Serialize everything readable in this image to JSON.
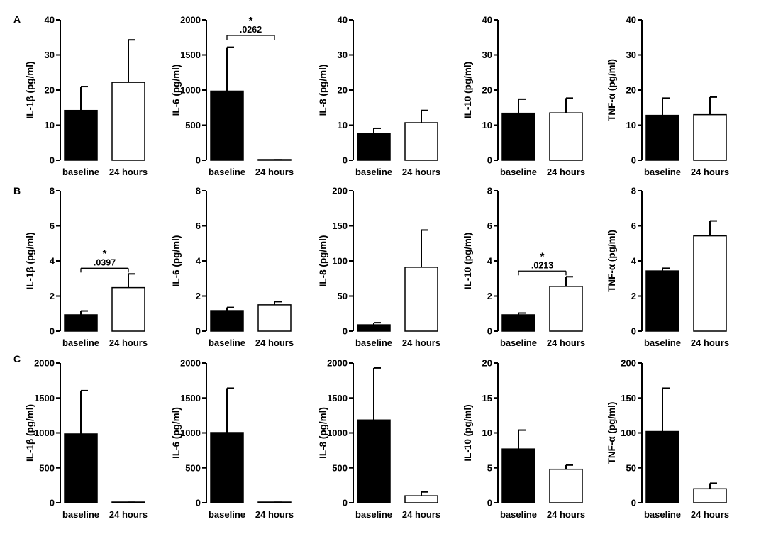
{
  "chart_data": [
    {
      "row": "A",
      "type": "bar",
      "ylabel": "IL-1β  (pg/ml)",
      "ylim": [
        0,
        40
      ],
      "yticks": [
        0,
        10,
        20,
        30,
        40
      ],
      "categories": [
        "baseline",
        "24 hours"
      ],
      "values": [
        14.2,
        22.2
      ],
      "errors": [
        6.8,
        12.1
      ],
      "fills": [
        "#000000",
        "#ffffff"
      ]
    },
    {
      "row": "A",
      "type": "bar",
      "ylabel": "IL-6  (pg/ml)",
      "ylim": [
        0,
        2000
      ],
      "yticks": [
        0,
        500,
        1000,
        1500,
        2000
      ],
      "categories": [
        "baseline",
        "24 hours"
      ],
      "values": [
        985,
        5
      ],
      "errors": [
        625,
        2
      ],
      "fills": [
        "#000000",
        "#ffffff"
      ],
      "significance": {
        "star": "*",
        "p": ".0262"
      }
    },
    {
      "row": "A",
      "type": "bar",
      "ylabel": "IL-8  (pg/ml)",
      "ylim": [
        0,
        40
      ],
      "yticks": [
        0,
        10,
        20,
        30,
        40
      ],
      "categories": [
        "baseline",
        "24 hours"
      ],
      "values": [
        7.6,
        10.7
      ],
      "errors": [
        1.5,
        3.5
      ],
      "fills": [
        "#000000",
        "#ffffff"
      ]
    },
    {
      "row": "A",
      "type": "bar",
      "ylabel": "IL-10  (pg/ml)",
      "ylim": [
        0,
        40
      ],
      "yticks": [
        0,
        10,
        20,
        30,
        40
      ],
      "categories": [
        "baseline",
        "24 hours"
      ],
      "values": [
        13.4,
        13.5
      ],
      "errors": [
        4.0,
        4.2
      ],
      "fills": [
        "#000000",
        "#ffffff"
      ]
    },
    {
      "row": "A",
      "type": "bar",
      "ylabel": "TNF-α  (pg/ml)",
      "ylim": [
        0,
        40
      ],
      "yticks": [
        0,
        10,
        20,
        30,
        40
      ],
      "categories": [
        "baseline",
        "24 hours"
      ],
      "values": [
        12.8,
        13.0
      ],
      "errors": [
        4.9,
        5.0
      ],
      "fills": [
        "#000000",
        "#ffffff"
      ]
    },
    {
      "row": "B",
      "type": "bar",
      "ylabel": "IL-1β  (pg/ml)",
      "ylim": [
        0,
        8
      ],
      "yticks": [
        0,
        2,
        4,
        6,
        8
      ],
      "categories": [
        "baseline",
        "24 hours"
      ],
      "values": [
        0.93,
        2.48
      ],
      "errors": [
        0.22,
        0.78
      ],
      "fills": [
        "#000000",
        "#ffffff"
      ],
      "significance": {
        "star": "*",
        "p": ".0397"
      }
    },
    {
      "row": "B",
      "type": "bar",
      "ylabel": "IL-6  (pg/ml)",
      "ylim": [
        0,
        8
      ],
      "yticks": [
        0,
        2,
        4,
        6,
        8
      ],
      "categories": [
        "baseline",
        "24 hours"
      ],
      "values": [
        1.17,
        1.5
      ],
      "errors": [
        0.18,
        0.18
      ],
      "fills": [
        "#000000",
        "#ffffff"
      ]
    },
    {
      "row": "B",
      "type": "bar",
      "ylabel": "IL-8  (pg/ml)",
      "ylim": [
        0,
        200
      ],
      "yticks": [
        0,
        50,
        100,
        150,
        200
      ],
      "categories": [
        "baseline",
        "24 hours"
      ],
      "values": [
        9,
        91
      ],
      "errors": [
        3,
        53
      ],
      "fills": [
        "#000000",
        "#ffffff"
      ]
    },
    {
      "row": "B",
      "type": "bar",
      "ylabel": "IL-10  (pg/ml)",
      "ylim": [
        0,
        8
      ],
      "yticks": [
        0,
        2,
        4,
        6,
        8
      ],
      "categories": [
        "baseline",
        "24 hours"
      ],
      "values": [
        0.93,
        2.55
      ],
      "errors": [
        0.1,
        0.55
      ],
      "fills": [
        "#000000",
        "#ffffff"
      ],
      "significance": {
        "star": "*",
        "p": ".0213"
      }
    },
    {
      "row": "B",
      "type": "bar",
      "ylabel": "TNF-α  (pg/ml)",
      "ylim": [
        0,
        8
      ],
      "yticks": [
        0,
        2,
        4,
        6,
        8
      ],
      "categories": [
        "baseline",
        "24 hours"
      ],
      "values": [
        3.43,
        5.43
      ],
      "errors": [
        0.15,
        0.85
      ],
      "fills": [
        "#000000",
        "#ffffff"
      ]
    },
    {
      "row": "C",
      "type": "bar",
      "ylabel": "IL-1β  (pg/ml)",
      "ylim": [
        0,
        2000
      ],
      "yticks": [
        0,
        500,
        1000,
        1500,
        2000
      ],
      "categories": [
        "baseline",
        "24 hours"
      ],
      "values": [
        985,
        5
      ],
      "errors": [
        620,
        2
      ],
      "fills": [
        "#000000",
        "#ffffff"
      ]
    },
    {
      "row": "C",
      "type": "bar",
      "ylabel": "IL-6  (pg/ml)",
      "ylim": [
        0,
        2000
      ],
      "yticks": [
        0,
        500,
        1000,
        1500,
        2000
      ],
      "categories": [
        "baseline",
        "24 hours"
      ],
      "values": [
        1005,
        5
      ],
      "errors": [
        635,
        2
      ],
      "fills": [
        "#000000",
        "#ffffff"
      ]
    },
    {
      "row": "C",
      "type": "bar",
      "ylabel": "IL-8  (pg/ml)",
      "ylim": [
        0,
        2000
      ],
      "yticks": [
        0,
        500,
        1000,
        1500,
        2000
      ],
      "categories": [
        "baseline",
        "24 hours"
      ],
      "values": [
        1185,
        100
      ],
      "errors": [
        745,
        55
      ],
      "fills": [
        "#000000",
        "#ffffff"
      ]
    },
    {
      "row": "C",
      "type": "bar",
      "ylabel": "IL-10  (pg/ml)",
      "ylim": [
        0,
        20
      ],
      "yticks": [
        0,
        5,
        10,
        15,
        20
      ],
      "categories": [
        "baseline",
        "24 hours"
      ],
      "values": [
        7.7,
        4.8
      ],
      "errors": [
        2.7,
        0.6
      ],
      "fills": [
        "#000000",
        "#ffffff"
      ]
    },
    {
      "row": "C",
      "type": "bar",
      "ylabel": "TNF-α  (pg/ml)",
      "ylim": [
        0,
        200
      ],
      "yticks": [
        0,
        50,
        100,
        150,
        200
      ],
      "categories": [
        "baseline",
        "24 hours"
      ],
      "values": [
        102,
        20
      ],
      "errors": [
        62,
        8
      ],
      "fills": [
        "#000000",
        "#ffffff"
      ]
    }
  ],
  "panel_labels": [
    "A",
    "B",
    "C"
  ]
}
